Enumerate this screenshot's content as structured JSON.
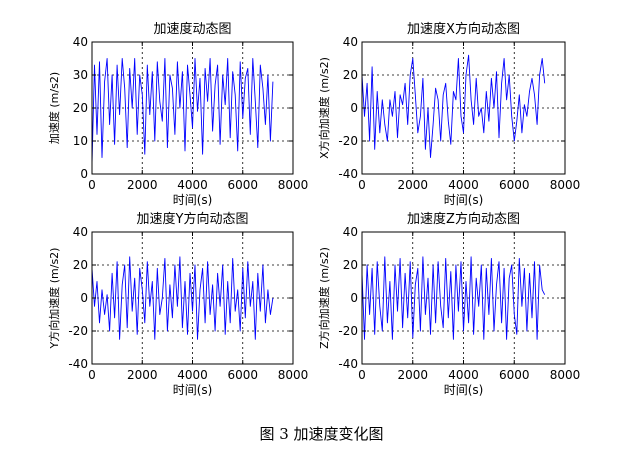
{
  "caption": "图 3  加速度变化图",
  "chart_data": [
    {
      "type": "line",
      "title": "加速度动态图",
      "xlabel": "时间(s)",
      "ylabel": "加速度 (m/s2)",
      "xlim": [
        0,
        8000
      ],
      "ylim": [
        0,
        40
      ],
      "xticks": [
        "0",
        "2000",
        "4000",
        "6000",
        "8000"
      ],
      "yticks": [
        "0",
        "10",
        "20",
        "30",
        "40"
      ],
      "grid": true,
      "line_color": "#0000ff",
      "x": [
        0,
        100,
        200,
        300,
        400,
        500,
        600,
        700,
        800,
        900,
        1000,
        1100,
        1200,
        1300,
        1400,
        1500,
        1600,
        1700,
        1800,
        1900,
        2000,
        2100,
        2200,
        2300,
        2400,
        2500,
        2600,
        2700,
        2800,
        2900,
        3000,
        3100,
        3200,
        3300,
        3400,
        3500,
        3600,
        3700,
        3800,
        3900,
        4000,
        4100,
        4200,
        4300,
        4400,
        4500,
        4600,
        4700,
        4800,
        4900,
        5000,
        5100,
        5200,
        5300,
        5400,
        5500,
        5600,
        5700,
        5800,
        5900,
        6000,
        6100,
        6200,
        6300,
        6400,
        6500,
        6600,
        6700,
        6800,
        6900,
        7000,
        7100,
        7200
      ],
      "y": [
        3,
        33,
        12,
        34,
        5,
        28,
        35,
        15,
        30,
        9,
        33,
        18,
        35,
        26,
        8,
        32,
        20,
        35,
        12,
        30,
        24,
        6,
        33,
        18,
        31,
        10,
        34,
        22,
        16,
        35,
        8,
        30,
        26,
        12,
        34,
        20,
        31,
        7,
        33,
        24,
        14,
        35,
        19,
        29,
        6,
        32,
        22,
        35,
        13,
        27,
        33,
        9,
        30,
        21,
        35,
        11,
        31,
        24,
        7,
        34,
        17,
        29,
        32,
        12,
        35,
        22,
        8,
        33,
        26,
        15,
        30,
        10,
        28
      ]
    },
    {
      "type": "line",
      "title": "加速度X方向动态图",
      "xlabel": "时间(s)",
      "ylabel": "X方向加速度 (m/s2)",
      "xlim": [
        0,
        8000
      ],
      "ylim": [
        -40,
        40
      ],
      "xticks": [
        "0",
        "2000",
        "4000",
        "6000",
        "8000"
      ],
      "yticks": [
        "-40",
        "-20",
        "0",
        "20",
        "40"
      ],
      "grid": true,
      "line_color": "#0000ff",
      "x": [
        0,
        100,
        200,
        300,
        400,
        500,
        600,
        700,
        800,
        900,
        1000,
        1100,
        1200,
        1300,
        1400,
        1500,
        1600,
        1700,
        1800,
        1900,
        2000,
        2100,
        2200,
        2300,
        2400,
        2500,
        2600,
        2700,
        2800,
        2900,
        3000,
        3100,
        3200,
        3300,
        3400,
        3500,
        3600,
        3700,
        3800,
        3900,
        4000,
        4100,
        4200,
        4300,
        4400,
        4500,
        4600,
        4700,
        4800,
        4900,
        5000,
        5100,
        5200,
        5300,
        5400,
        5500,
        5600,
        5700,
        5800,
        5900,
        6000,
        6100,
        6200,
        6300,
        6400,
        6500,
        6600,
        6700,
        6800,
        6900,
        7000,
        7100,
        7200
      ],
      "y": [
        20,
        -5,
        15,
        -20,
        25,
        -25,
        10,
        -15,
        5,
        -10,
        -20,
        5,
        -5,
        10,
        -18,
        8,
        2,
        15,
        -10,
        20,
        30,
        8,
        -15,
        -5,
        18,
        -25,
        0,
        -30,
        -10,
        12,
        5,
        -20,
        8,
        15,
        -8,
        -22,
        10,
        5,
        30,
        -5,
        -15,
        20,
        32,
        5,
        -10,
        18,
        -5,
        0,
        -15,
        10,
        -8,
        18,
        0,
        22,
        -18,
        15,
        30,
        5,
        20,
        -5,
        -20,
        -8,
        8,
        -15,
        2,
        -5,
        10,
        18,
        8,
        -10,
        20,
        30,
        15
      ]
    },
    {
      "type": "line",
      "title": "加速度Y方向动态图",
      "xlabel": "时间(s)",
      "ylabel": "Y方向加速度 (m/s2)",
      "xlim": [
        0,
        8000
      ],
      "ylim": [
        -40,
        40
      ],
      "xticks": [
        "0",
        "2000",
        "4000",
        "6000",
        "8000"
      ],
      "yticks": [
        "-40",
        "-20",
        "0",
        "20",
        "40"
      ],
      "grid": true,
      "line_color": "#0000ff",
      "x": [
        0,
        100,
        200,
        300,
        400,
        500,
        600,
        700,
        800,
        900,
        1000,
        1100,
        1200,
        1300,
        1400,
        1500,
        1600,
        1700,
        1800,
        1900,
        2000,
        2100,
        2200,
        2300,
        2400,
        2500,
        2600,
        2700,
        2800,
        2900,
        3000,
        3100,
        3200,
        3300,
        3400,
        3500,
        3600,
        3700,
        3800,
        3900,
        4000,
        4100,
        4200,
        4300,
        4400,
        4500,
        4600,
        4700,
        4800,
        4900,
        5000,
        5100,
        5200,
        5300,
        5400,
        5500,
        5600,
        5700,
        5800,
        5900,
        6000,
        6100,
        6200,
        6300,
        6400,
        6500,
        6600,
        6700,
        6800,
        6900,
        7000,
        7100,
        7200
      ],
      "y": [
        18,
        -5,
        10,
        -15,
        5,
        -10,
        2,
        -20,
        15,
        -12,
        22,
        -25,
        8,
        20,
        -18,
        25,
        -8,
        12,
        -22,
        18,
        5,
        -15,
        22,
        -5,
        10,
        -25,
        18,
        -10,
        0,
        24,
        -20,
        8,
        -12,
        20,
        -5,
        25,
        -18,
        10,
        -22,
        15,
        -8,
        20,
        -25,
        5,
        18,
        -15,
        22,
        -10,
        8,
        -20,
        15,
        -5,
        20,
        -22,
        10,
        -15,
        24,
        -8,
        5,
        -20,
        18,
        -12,
        22,
        -5,
        10,
        -25,
        15,
        -8,
        20,
        -15,
        5,
        -10,
        0
      ]
    },
    {
      "type": "line",
      "title": "加速度Z方向动态图",
      "xlabel": "时间(s)",
      "ylabel": "Z方向加速度 (m/s2)",
      "xlim": [
        0,
        8000
      ],
      "ylim": [
        -40,
        40
      ],
      "xticks": [
        "0",
        "2000",
        "4000",
        "6000",
        "8000"
      ],
      "yticks": [
        "-40",
        "-20",
        "0",
        "20",
        "40"
      ],
      "grid": true,
      "line_color": "#0000ff",
      "x": [
        0,
        100,
        200,
        300,
        400,
        500,
        600,
        700,
        800,
        900,
        1000,
        1100,
        1200,
        1300,
        1400,
        1500,
        1600,
        1700,
        1800,
        1900,
        2000,
        2100,
        2200,
        2300,
        2400,
        2500,
        2600,
        2700,
        2800,
        2900,
        3000,
        3100,
        3200,
        3300,
        3400,
        3500,
        3600,
        3700,
        3800,
        3900,
        4000,
        4100,
        4200,
        4300,
        4400,
        4500,
        4600,
        4700,
        4800,
        4900,
        5000,
        5100,
        5200,
        5300,
        5400,
        5500,
        5600,
        5700,
        5800,
        5900,
        6000,
        6100,
        6200,
        6300,
        6400,
        6500,
        6600,
        6700,
        6800,
        6900,
        7000,
        7100,
        7200
      ],
      "y": [
        15,
        -25,
        20,
        -10,
        18,
        -22,
        22,
        -5,
        -20,
        25,
        -15,
        10,
        -25,
        20,
        -8,
        24,
        -18,
        15,
        -12,
        22,
        -24,
        8,
        18,
        -20,
        25,
        -10,
        12,
        -22,
        20,
        -15,
        22,
        -5,
        -18,
        24,
        -12,
        16,
        -25,
        20,
        -8,
        22,
        -20,
        10,
        -15,
        25,
        -22,
        12,
        -5,
        20,
        -25,
        18,
        -10,
        24,
        -20,
        8,
        22,
        -15,
        18,
        -25,
        12,
        20,
        -10,
        -22,
        24,
        -5,
        18,
        -20,
        15,
        -12,
        22,
        -25,
        20,
        5,
        2
      ]
    }
  ]
}
